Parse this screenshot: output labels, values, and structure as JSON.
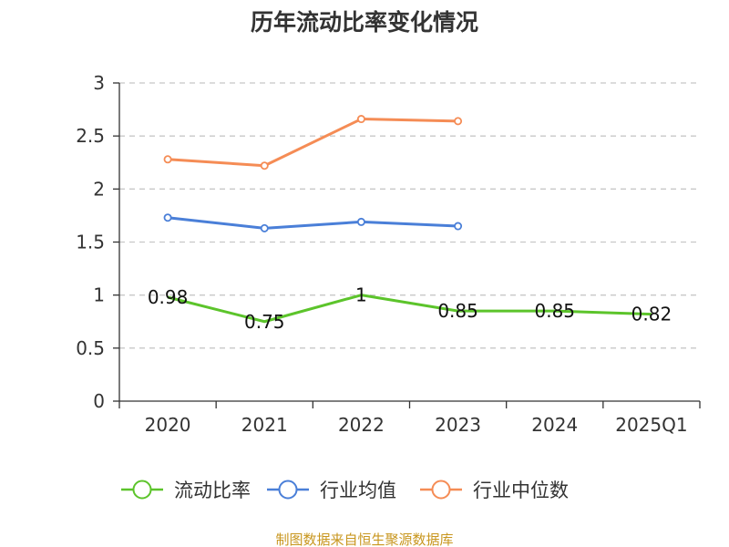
{
  "chart_data": {
    "type": "line",
    "title": "历年流动比率变化情况",
    "categories": [
      "2020",
      "2021",
      "2022",
      "2023",
      "2024",
      "2025Q1"
    ],
    "ylim": [
      0,
      3
    ],
    "yticks": [
      "0",
      "0.5",
      "1",
      "1.5",
      "2",
      "2.5",
      "3"
    ],
    "grid": "horizontal-dashed",
    "legend_position": "bottom",
    "series": [
      {
        "name": "流动比率",
        "color": "#5cc42b",
        "values": [
          0.98,
          0.75,
          1,
          0.85,
          0.85,
          0.82
        ],
        "labels": [
          "0.98",
          "0.75",
          "1",
          "0.85",
          "0.85",
          "0.82"
        ],
        "show_labels": true,
        "show_markers": false
      },
      {
        "name": "行业均值",
        "color": "#4a7fd8",
        "values": [
          1.73,
          1.63,
          1.69,
          1.65,
          null,
          null
        ],
        "show_labels": false,
        "show_markers": true
      },
      {
        "name": "行业中位数",
        "color": "#f58c55",
        "values": [
          2.28,
          2.22,
          2.66,
          2.64,
          null,
          null
        ],
        "show_labels": false,
        "show_markers": true
      }
    ],
    "source": "制图数据来自恒生聚源数据库"
  }
}
